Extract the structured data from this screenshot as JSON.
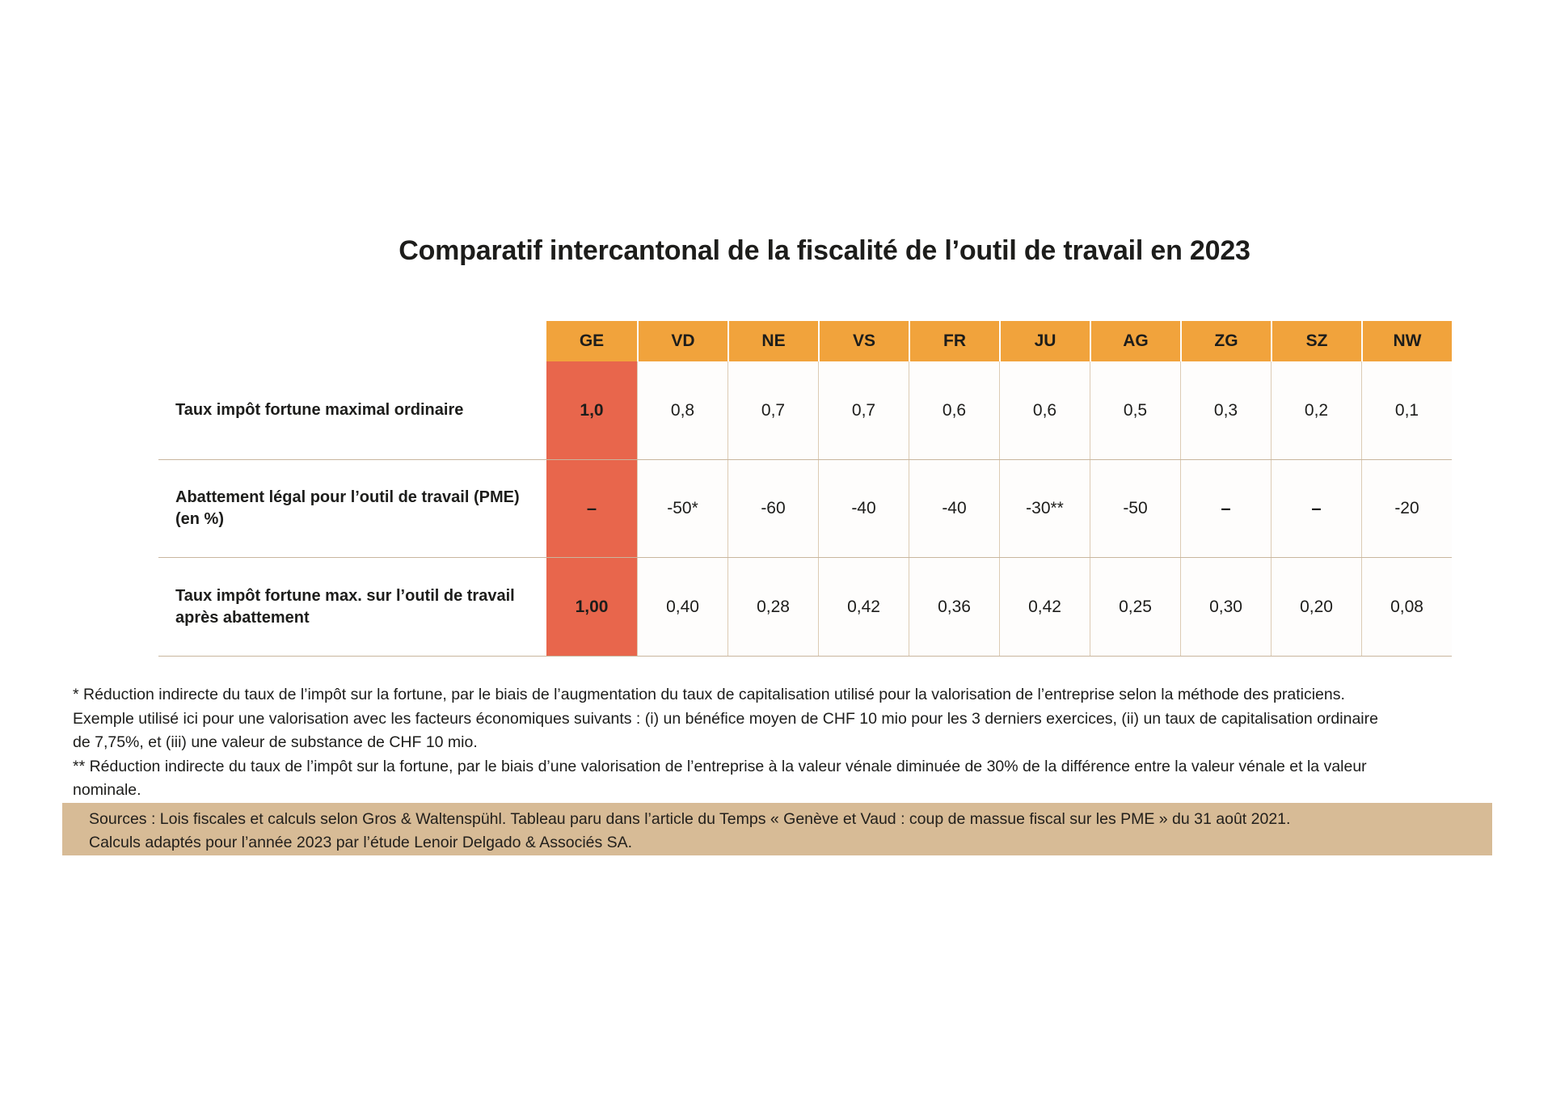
{
  "page_title": "Comparatif intercantonal de la fiscalité de l’outil de travail en 2023",
  "chart_data": {
    "type": "table",
    "title": "Comparatif intercantonal de la fiscalité de l’outil de travail en 2023",
    "columns": [
      "GE",
      "VD",
      "NE",
      "VS",
      "FR",
      "JU",
      "AG",
      "ZG",
      "SZ",
      "NW"
    ],
    "highlight_column": "GE",
    "rows": [
      {
        "label": "Taux impôt fortune maximal ordinaire",
        "values": [
          "1,0",
          "0,8",
          "0,7",
          "0,7",
          "0,6",
          "0,6",
          "0,5",
          "0,3",
          "0,2",
          "0,1"
        ]
      },
      {
        "label": "Abattement légal pour l’outil de travail (PME) (en %)",
        "values": [
          "–",
          "-50*",
          "-60",
          "-40",
          "-40",
          "-30**",
          "-50",
          "–",
          "–",
          "-20"
        ]
      },
      {
        "label": "Taux impôt fortune max. sur l’outil de travail après abattement",
        "values": [
          "1,00",
          "0,40",
          "0,28",
          "0,42",
          "0,36",
          "0,42",
          "0,25",
          "0,30",
          "0,20",
          "0,08"
        ]
      }
    ],
    "footnote1_lines": [
      "* Réduction indirecte du taux de l’impôt sur la fortune, par le biais de l’augmentation du taux de capitalisation utilisé pour la valorisation de l’entreprise selon la méthode des praticiens.",
      "Exemple utilisé ici pour une valorisation avec les facteurs économiques suivants : (i) un bénéfice moyen de CHF 10 mio pour les 3 derniers exercices, (ii) un taux de capitalisation ordinaire",
      "de 7,75%, et (iii) une valeur de substance de CHF 10 mio."
    ],
    "footnote2_lines": [
      "** Réduction indirecte du taux de l’impôt sur la fortune, par le biais d’une valorisation de l’entreprise à la valeur vénale diminuée de 30% de la différence entre la valeur vénale et la valeur",
      "nominale."
    ],
    "sources_lines": [
      "Sources : Lois fiscales et calculs selon Gros & Waltenspühl. Tableau paru dans l’article du Temps « Genève et Vaud : coup de massue fiscal sur les PME » du 31 août 2021.",
      "Calculs adaptés pour l’année 2023 par l’étude Lenoir Delgado & Associés SA."
    ]
  },
  "colors": {
    "header_bg": "#F1A33C",
    "highlight_bg": "#E8664C",
    "separator": "#C9B69E",
    "col_divider": "#DCCBB4",
    "sources_bg": "#D7BB96",
    "text": "#1D1D1B"
  }
}
